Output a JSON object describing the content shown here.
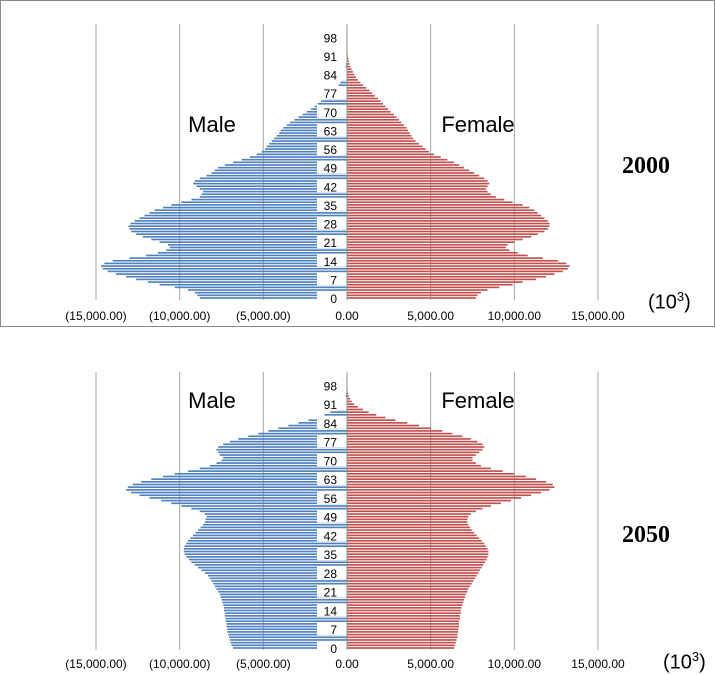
{
  "chart_data": [
    {
      "type": "bar",
      "orientation": "horizontal",
      "subtype": "population-pyramid",
      "year_label": "2000",
      "unit_label": "(10",
      "unit_exponent": "3",
      "unit_close": ")",
      "series": [
        {
          "name": "Male",
          "color": "#4f81bd"
        },
        {
          "name": "Female",
          "color": "#c0504d"
        }
      ],
      "xlim": [
        -15000,
        15000
      ],
      "x_ticks": [
        -15000,
        -10000,
        -5000,
        0,
        5000,
        10000,
        15000
      ],
      "x_tick_labels": [
        "(15,000.00)",
        "(10,000.00)",
        "(5,000.00)",
        "0.00",
        "5,000.00",
        "10,000.00",
        "15,000.00"
      ],
      "y_ticks": [
        0,
        7,
        14,
        21,
        28,
        35,
        42,
        49,
        56,
        63,
        70,
        77,
        84,
        91,
        98
      ],
      "ages": [
        0,
        1,
        2,
        3,
        4,
        5,
        6,
        7,
        8,
        9,
        10,
        11,
        12,
        13,
        14,
        15,
        16,
        17,
        18,
        19,
        20,
        21,
        22,
        23,
        24,
        25,
        26,
        27,
        28,
        29,
        30,
        31,
        32,
        33,
        34,
        35,
        36,
        37,
        38,
        39,
        40,
        41,
        42,
        43,
        44,
        45,
        46,
        47,
        48,
        49,
        50,
        51,
        52,
        53,
        54,
        55,
        56,
        57,
        58,
        59,
        60,
        61,
        62,
        63,
        64,
        65,
        66,
        67,
        68,
        69,
        70,
        71,
        72,
        73,
        74,
        75,
        76,
        77,
        78,
        79,
        80,
        81,
        82,
        83,
        84,
        85,
        86,
        87,
        88,
        89,
        90,
        91,
        92,
        93,
        94,
        95,
        96,
        97,
        98,
        99,
        100
      ],
      "male": [
        8800,
        8950,
        9100,
        9500,
        10300,
        11200,
        11900,
        12600,
        13200,
        13800,
        14300,
        14600,
        14700,
        14500,
        14000,
        13000,
        12000,
        11300,
        10800,
        10600,
        10700,
        11200,
        11700,
        12200,
        12600,
        12900,
        13000,
        13050,
        12950,
        12700,
        12400,
        12100,
        11800,
        11500,
        11000,
        10500,
        9900,
        9300,
        8800,
        8700,
        8600,
        8800,
        9000,
        9200,
        9100,
        8800,
        8400,
        8100,
        7900,
        7700,
        7300,
        6800,
        6300,
        5800,
        5400,
        5100,
        4900,
        4800,
        4650,
        4500,
        4350,
        4200,
        4050,
        3950,
        3800,
        3600,
        3400,
        3150,
        2900,
        2650,
        2400,
        2150,
        1950,
        1750,
        1550,
        1350,
        1150,
        950,
        800,
        650,
        500,
        400,
        300,
        240,
        180,
        130,
        100,
        80,
        60,
        45,
        30,
        25,
        20,
        15,
        12,
        10,
        8,
        6,
        5,
        4,
        3
      ],
      "female": [
        7700,
        7800,
        8000,
        8400,
        9100,
        9900,
        10500,
        11300,
        11900,
        12400,
        12900,
        13200,
        13300,
        13100,
        12600,
        11700,
        10800,
        10200,
        9700,
        9500,
        9600,
        10000,
        10500,
        11000,
        11400,
        11800,
        12000,
        12100,
        12100,
        12000,
        11800,
        11600,
        11400,
        11200,
        10900,
        10500,
        9900,
        9400,
        8900,
        8600,
        8400,
        8300,
        8400,
        8500,
        8400,
        8200,
        7900,
        7600,
        7300,
        7000,
        6700,
        6400,
        6000,
        5600,
        5200,
        4900,
        4700,
        4500,
        4300,
        4100,
        3950,
        3850,
        3750,
        3650,
        3550,
        3400,
        3250,
        3100,
        2950,
        2800,
        2600,
        2450,
        2300,
        2150,
        2000,
        1850,
        1650,
        1500,
        1350,
        1150,
        950,
        800,
        650,
        540,
        440,
        350,
        270,
        200,
        150,
        110,
        80,
        60,
        40,
        30,
        20,
        15,
        10,
        8,
        5,
        4,
        3
      ],
      "male_label": "Male",
      "female_label": "Female"
    },
    {
      "type": "bar",
      "orientation": "horizontal",
      "subtype": "population-pyramid",
      "year_label": "2050",
      "unit_label": "(10",
      "unit_exponent": "3",
      "unit_close": ")",
      "series": [
        {
          "name": "Male",
          "color": "#4f81bd"
        },
        {
          "name": "Female",
          "color": "#c0504d"
        }
      ],
      "xlim": [
        -15000,
        15000
      ],
      "x_ticks": [
        -15000,
        -10000,
        -5000,
        0,
        5000,
        10000,
        15000
      ],
      "x_tick_labels": [
        "(15,000.00)",
        "(10,000.00)",
        "(5,000.00)",
        "0.00",
        "5,000.00",
        "10,000.00",
        "15,000.00"
      ],
      "y_ticks": [
        0,
        7,
        14,
        21,
        28,
        35,
        42,
        49,
        56,
        63,
        70,
        77,
        84,
        91,
        98
      ],
      "ages": [
        0,
        1,
        2,
        3,
        4,
        5,
        6,
        7,
        8,
        9,
        10,
        11,
        12,
        13,
        14,
        15,
        16,
        17,
        18,
        19,
        20,
        21,
        22,
        23,
        24,
        25,
        26,
        27,
        28,
        29,
        30,
        31,
        32,
        33,
        34,
        35,
        36,
        37,
        38,
        39,
        40,
        41,
        42,
        43,
        44,
        45,
        46,
        47,
        48,
        49,
        50,
        51,
        52,
        53,
        54,
        55,
        56,
        57,
        58,
        59,
        60,
        61,
        62,
        63,
        64,
        65,
        66,
        67,
        68,
        69,
        70,
        71,
        72,
        73,
        74,
        75,
        76,
        77,
        78,
        79,
        80,
        81,
        82,
        83,
        84,
        85,
        86,
        87,
        88,
        89,
        90,
        91,
        92,
        93,
        94,
        95,
        96,
        97,
        98,
        99,
        100
      ],
      "male": [
        6800,
        6900,
        6950,
        7000,
        7050,
        7100,
        7150,
        7150,
        7200,
        7200,
        7250,
        7250,
        7300,
        7300,
        7350,
        7350,
        7400,
        7450,
        7500,
        7550,
        7600,
        7700,
        7800,
        7900,
        8000,
        8100,
        8200,
        8300,
        8500,
        8700,
        8900,
        9100,
        9300,
        9450,
        9600,
        9700,
        9750,
        9750,
        9700,
        9600,
        9500,
        9350,
        9200,
        9050,
        8900,
        8750,
        8600,
        8500,
        8450,
        8400,
        8500,
        8800,
        9300,
        9900,
        10500,
        11100,
        11800,
        12400,
        12900,
        13200,
        13100,
        12800,
        12300,
        11700,
        11000,
        10300,
        9500,
        8800,
        8200,
        7800,
        7500,
        7400,
        7600,
        7700,
        7800,
        7700,
        7400,
        7000,
        6500,
        5900,
        5300,
        4700,
        4100,
        3500,
        2900,
        2300,
        1800,
        1350,
        1000,
        700,
        450,
        300,
        200,
        130,
        80,
        50,
        30,
        20,
        12,
        8,
        5
      ],
      "female": [
        6400,
        6450,
        6500,
        6550,
        6600,
        6600,
        6650,
        6650,
        6700,
        6700,
        6700,
        6750,
        6750,
        6800,
        6800,
        6850,
        6900,
        6950,
        7000,
        7050,
        7100,
        7200,
        7250,
        7350,
        7450,
        7550,
        7650,
        7750,
        7850,
        7950,
        8050,
        8150,
        8250,
        8350,
        8400,
        8450,
        8450,
        8400,
        8300,
        8200,
        8050,
        7900,
        7750,
        7600,
        7450,
        7350,
        7250,
        7200,
        7200,
        7250,
        7400,
        7700,
        8100,
        8600,
        9200,
        9800,
        10400,
        11000,
        11600,
        12100,
        12400,
        12300,
        11900,
        11300,
        10700,
        10000,
        9300,
        8600,
        8000,
        7700,
        7500,
        7500,
        7700,
        7900,
        8100,
        8200,
        8100,
        7800,
        7400,
        6900,
        6300,
        5700,
        5000,
        4300,
        3600,
        2900,
        2300,
        1750,
        1300,
        950,
        650,
        430,
        280,
        180,
        110,
        70,
        40,
        25,
        15,
        10,
        6
      ],
      "male_label": "Male",
      "female_label": "Female"
    }
  ]
}
